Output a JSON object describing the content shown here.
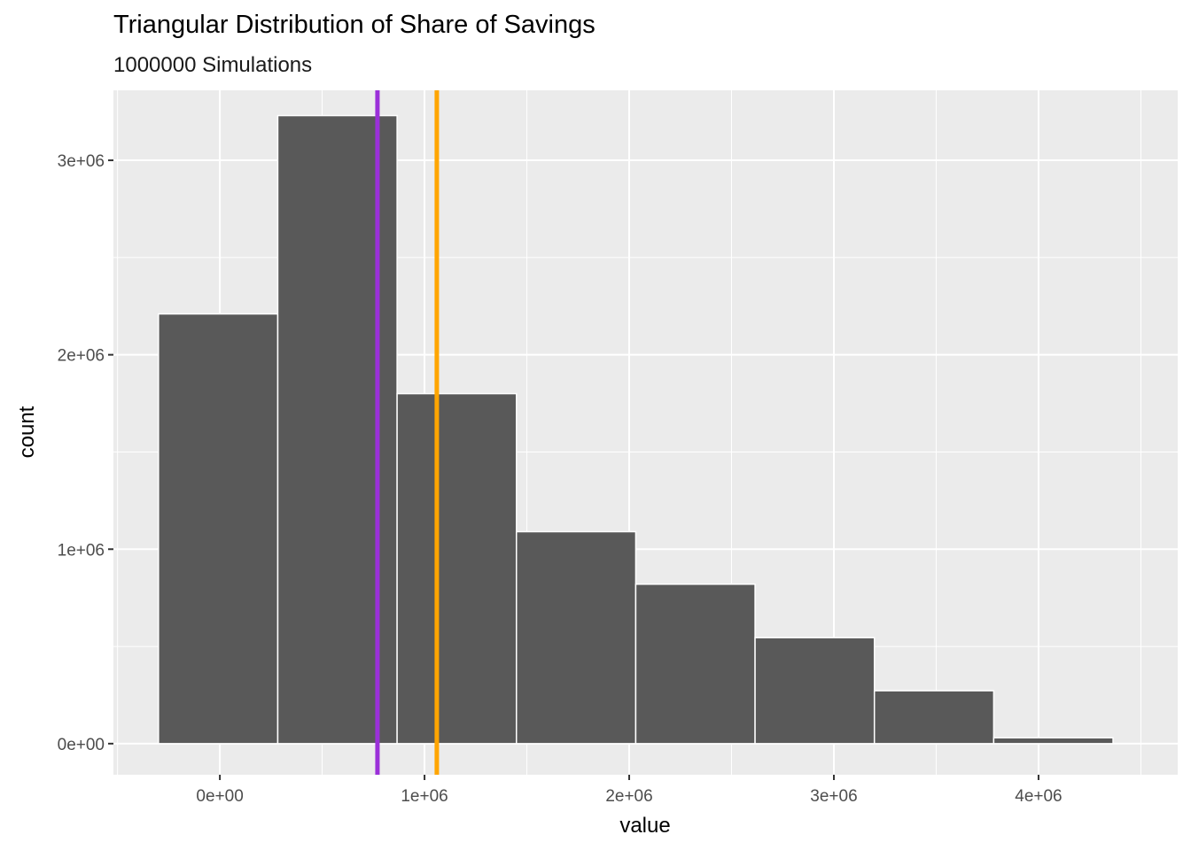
{
  "chart_data": {
    "type": "bar",
    "subtype": "histogram",
    "title": "Triangular Distribution of Share of Savings",
    "subtitle": "1000000 Simulations",
    "xlabel": "value",
    "ylabel": "count",
    "xlim": [
      -520000,
      4680000
    ],
    "ylim": [
      -160000,
      3360000
    ],
    "x_ticks": [
      {
        "value": 0,
        "label": "0e+00"
      },
      {
        "value": 1000000,
        "label": "1e+06"
      },
      {
        "value": 2000000,
        "label": "2e+06"
      },
      {
        "value": 3000000,
        "label": "3e+06"
      },
      {
        "value": 4000000,
        "label": "4e+06"
      }
    ],
    "y_ticks": [
      {
        "value": 0,
        "label": "0e+00"
      },
      {
        "value": 1000000,
        "label": "1e+06"
      },
      {
        "value": 2000000,
        "label": "2e+06"
      },
      {
        "value": 3000000,
        "label": "3e+06"
      }
    ],
    "bins": [
      {
        "x0": -300000,
        "x1": 283000,
        "count": 2210000
      },
      {
        "x0": 283000,
        "x1": 866000,
        "count": 3230000
      },
      {
        "x0": 866000,
        "x1": 1449000,
        "count": 1800000
      },
      {
        "x0": 1449000,
        "x1": 2032000,
        "count": 1090000
      },
      {
        "x0": 2032000,
        "x1": 2615000,
        "count": 820000
      },
      {
        "x0": 2615000,
        "x1": 3198000,
        "count": 545000
      },
      {
        "x0": 3198000,
        "x1": 3781000,
        "count": 272000
      },
      {
        "x0": 3781000,
        "x1": 4364000,
        "count": 30000
      }
    ],
    "vlines": [
      {
        "value": 770000,
        "color": "#9b30d9"
      },
      {
        "value": 1060000,
        "color": "#ffa500"
      }
    ],
    "colors": {
      "bar_fill": "#595959",
      "bar_outline": "#ffffff",
      "panel_background": "#ebebeb",
      "grid": "#ffffff"
    },
    "grid": true,
    "legend": "none"
  }
}
